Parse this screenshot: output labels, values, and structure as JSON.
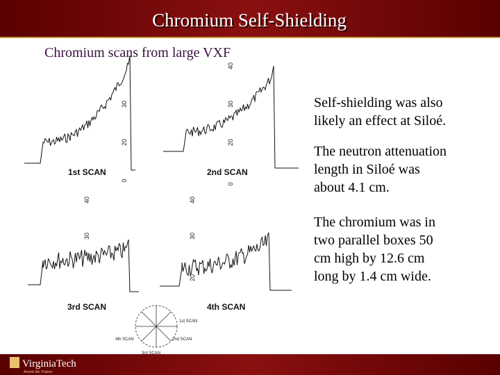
{
  "header": {
    "title": "Chromium Self-Shielding"
  },
  "subtitle": "Chromium scans from large VXF",
  "paragraphs": [
    [
      "Self-shielding was also",
      "likely an effect at Siloé."
    ],
    [
      "The neutron attenuation",
      "length in Siloé was",
      "about 4.1 cm."
    ],
    [
      "The chromium was in",
      "two parallel boxes 50",
      "cm high by 12.6 cm",
      "long by 1.4 cm wide."
    ]
  ],
  "scans": [
    {
      "label": "1st SCAN",
      "ticks": [
        "30",
        "20",
        "0"
      ]
    },
    {
      "label": "2nd SCAN",
      "ticks": [
        "40",
        "30",
        "20",
        "0"
      ]
    },
    {
      "label": "3rd SCAN",
      "ticks": [
        "40",
        "30"
      ]
    },
    {
      "label": "4th SCAN",
      "ticks": [
        "40",
        "30",
        "20"
      ]
    }
  ],
  "orientation_diagram": {
    "labels": [
      "1st SCAN",
      "2nd SCAN",
      "3rd SCAN",
      "4th SCAN"
    ]
  },
  "footer": {
    "logo": "VirginiaTech",
    "tagline": "Invent the Future"
  }
}
